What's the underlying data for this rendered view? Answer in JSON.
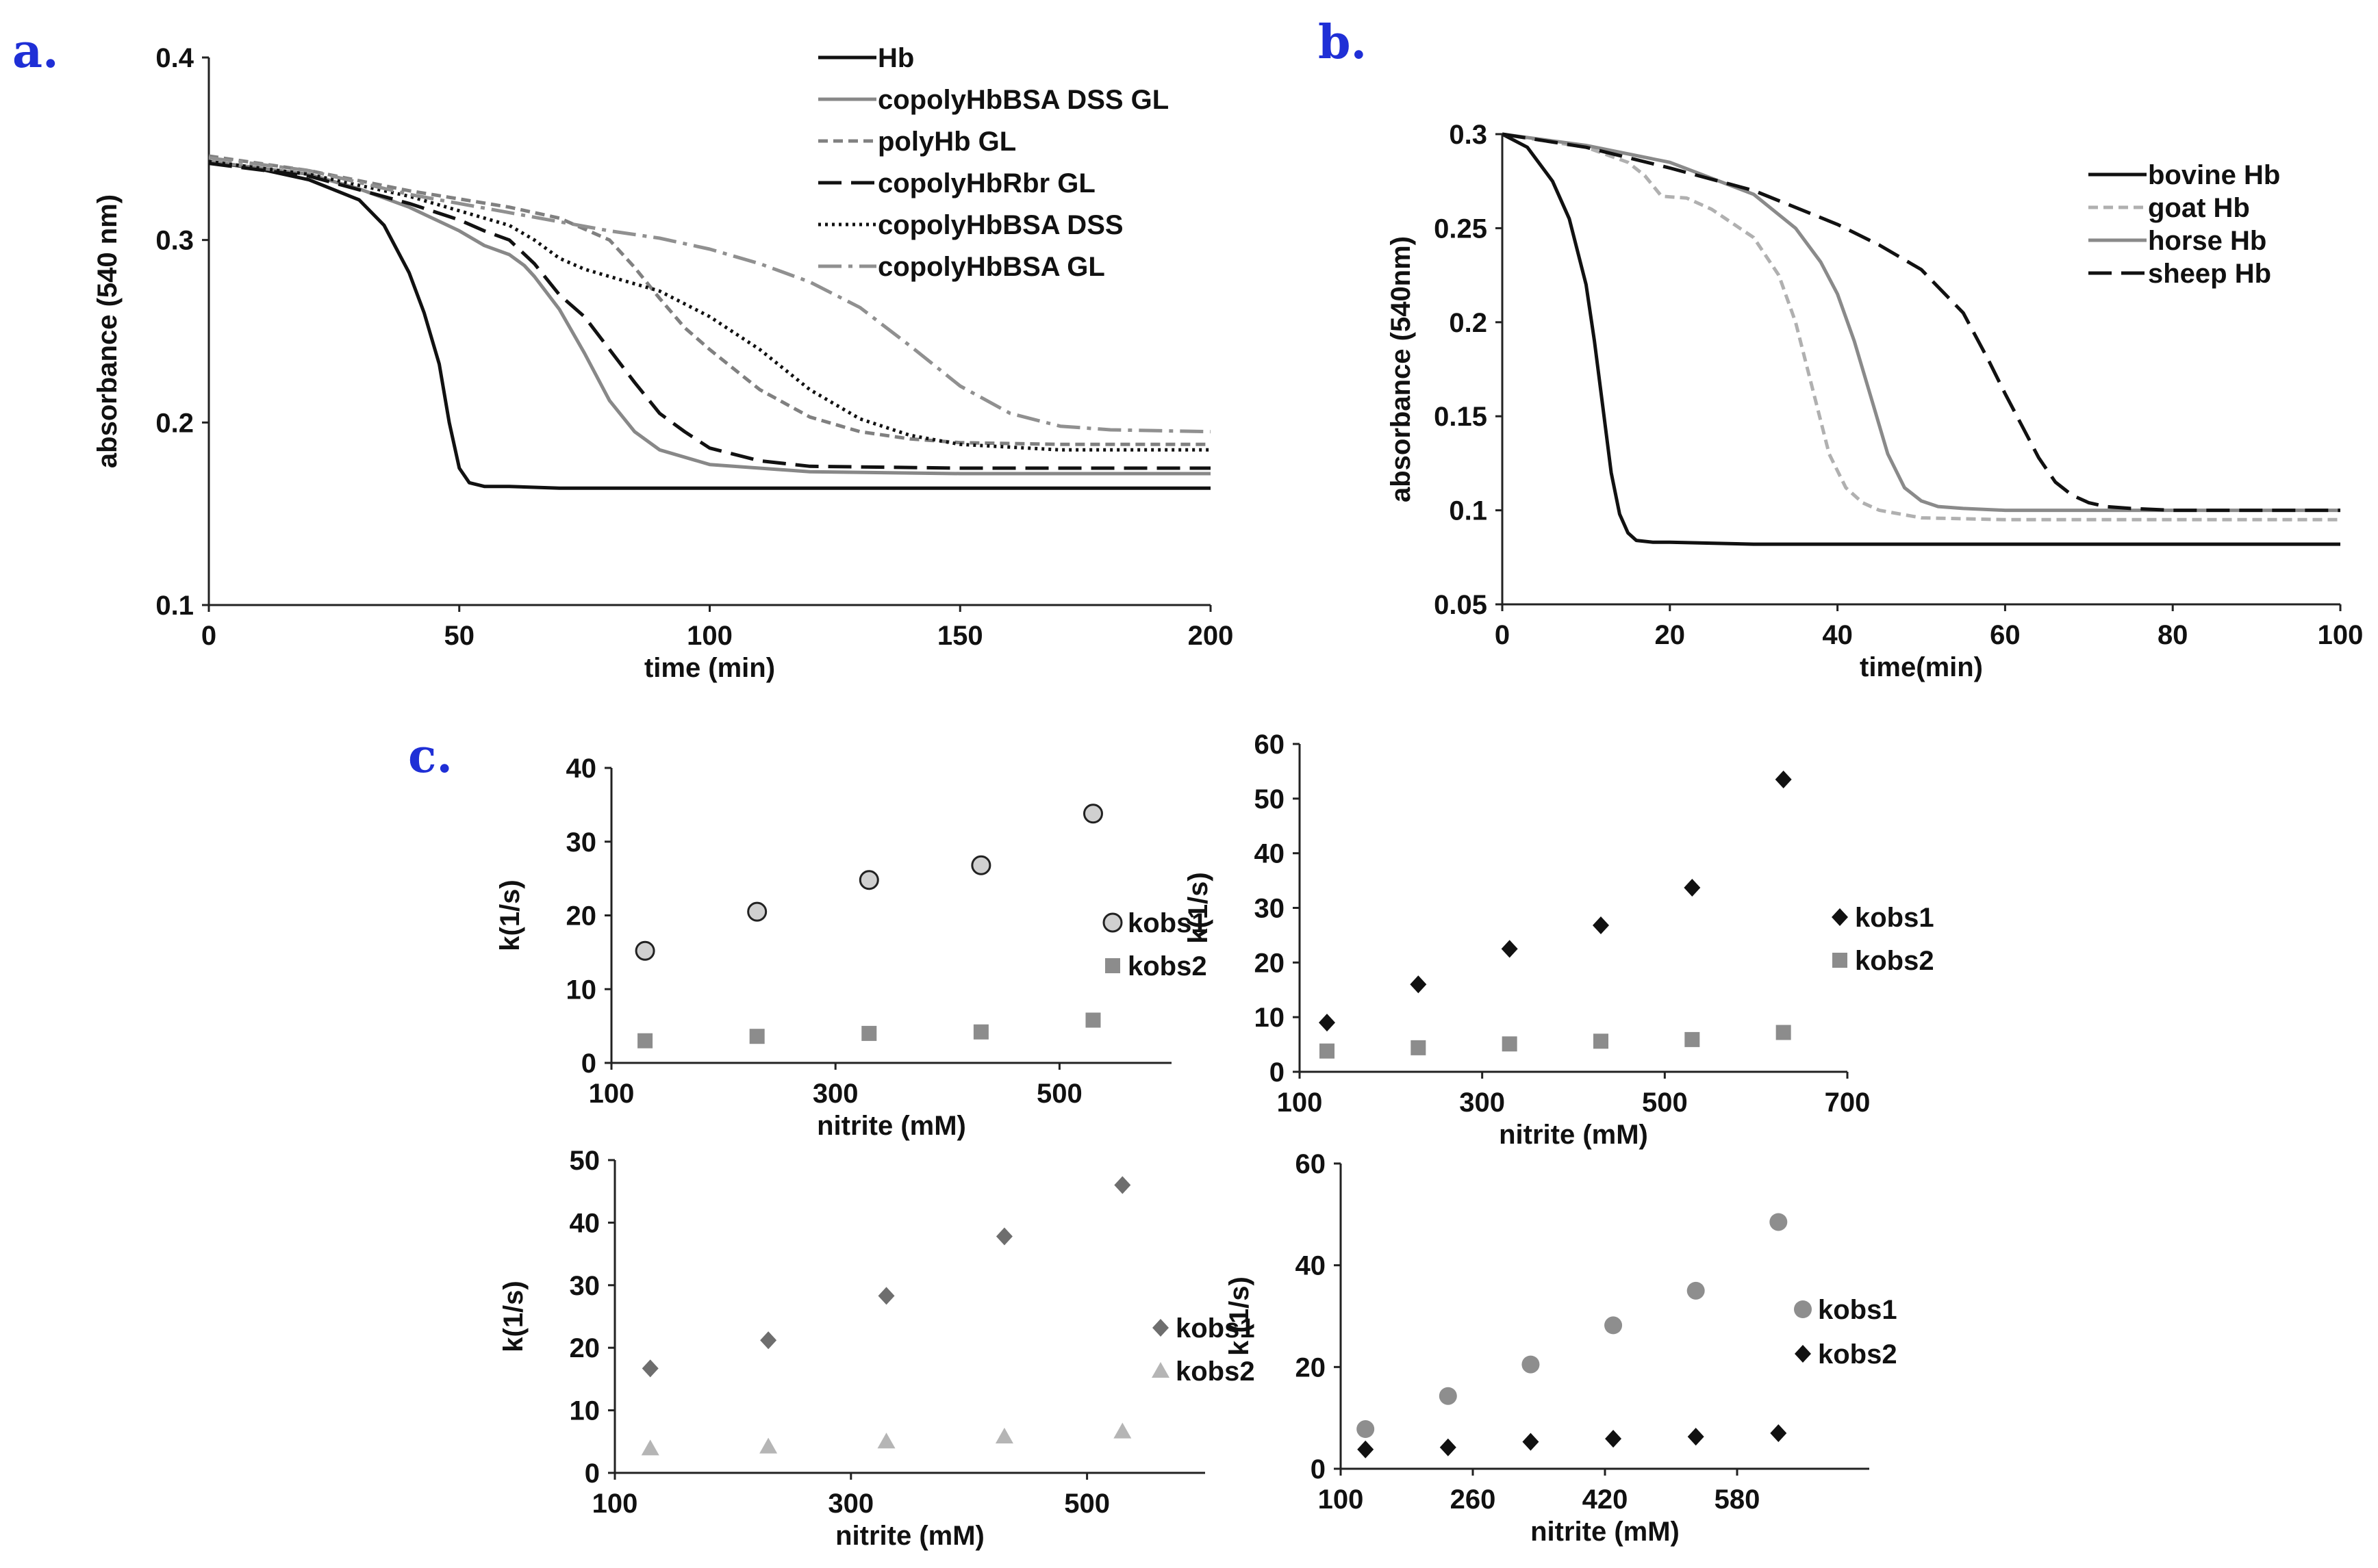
{
  "panel_labels": [
    "a.",
    "b.",
    "c."
  ],
  "chart_data": [
    {
      "id": "a",
      "type": "line",
      "xlabel": "time (min)",
      "ylabel": "absorbance (540 nm)",
      "xlim": [
        0,
        200
      ],
      "ylim": [
        0.1,
        0.4
      ],
      "xticks": [
        0,
        50,
        100,
        150,
        200
      ],
      "yticks": [
        0.1,
        0.2,
        0.3,
        0.4
      ],
      "xtick_labels": [
        "0",
        "50",
        "100",
        "150",
        "200"
      ],
      "ytick_labels": [
        "0.1",
        "0.2",
        "0.3",
        "0.4"
      ],
      "legend_position": "top-right",
      "series": [
        {
          "name": "Hb",
          "color": "#111111",
          "dash": "solid",
          "x": [
            0,
            10,
            20,
            30,
            35,
            40,
            43,
            46,
            48,
            50,
            52,
            55,
            60,
            70,
            100,
            150,
            200
          ],
          "y": [
            0.343,
            0.339,
            0.333,
            0.322,
            0.308,
            0.282,
            0.26,
            0.232,
            0.2,
            0.175,
            0.167,
            0.165,
            0.165,
            0.164,
            0.164,
            0.164,
            0.164
          ]
        },
        {
          "name": "copolyHbBSA DSS GL",
          "color": "#888888",
          "dash": "solid",
          "x": [
            0,
            20,
            30,
            40,
            50,
            55,
            60,
            63,
            65,
            70,
            75,
            80,
            85,
            90,
            100,
            120,
            150,
            200
          ],
          "y": [
            0.343,
            0.336,
            0.328,
            0.318,
            0.305,
            0.297,
            0.292,
            0.286,
            0.28,
            0.262,
            0.238,
            0.212,
            0.195,
            0.185,
            0.177,
            0.173,
            0.172,
            0.172
          ]
        },
        {
          "name": "polyHb GL",
          "color": "#808080",
          "dash": "short",
          "x": [
            0,
            20,
            40,
            60,
            70,
            80,
            85,
            90,
            95,
            100,
            110,
            120,
            130,
            140,
            150,
            170,
            200
          ],
          "y": [
            0.346,
            0.338,
            0.327,
            0.318,
            0.312,
            0.3,
            0.285,
            0.268,
            0.252,
            0.24,
            0.218,
            0.203,
            0.195,
            0.191,
            0.189,
            0.188,
            0.188
          ]
        },
        {
          "name": "copolyHbRbr GL",
          "color": "#111111",
          "dash": "long",
          "x": [
            0,
            20,
            40,
            50,
            55,
            60,
            65,
            70,
            75,
            80,
            85,
            90,
            95,
            100,
            110,
            120,
            150,
            200
          ],
          "y": [
            0.342,
            0.335,
            0.32,
            0.311,
            0.305,
            0.3,
            0.287,
            0.27,
            0.258,
            0.24,
            0.222,
            0.205,
            0.195,
            0.186,
            0.179,
            0.176,
            0.175,
            0.175
          ]
        },
        {
          "name": "copolyHbBSA DSS",
          "color": "#111111",
          "dash": "dotted",
          "x": [
            0,
            20,
            40,
            50,
            60,
            65,
            70,
            75,
            80,
            90,
            100,
            110,
            120,
            130,
            140,
            150,
            170,
            200
          ],
          "y": [
            0.343,
            0.336,
            0.324,
            0.316,
            0.308,
            0.3,
            0.29,
            0.284,
            0.28,
            0.272,
            0.258,
            0.24,
            0.218,
            0.202,
            0.193,
            0.188,
            0.185,
            0.185
          ]
        },
        {
          "name": "copolyHbBSA GL",
          "color": "#909090",
          "dash": "dashdot",
          "x": [
            0,
            20,
            40,
            60,
            70,
            80,
            90,
            100,
            110,
            120,
            130,
            140,
            150,
            160,
            170,
            180,
            200
          ],
          "y": [
            0.345,
            0.338,
            0.325,
            0.315,
            0.31,
            0.305,
            0.301,
            0.295,
            0.287,
            0.277,
            0.263,
            0.242,
            0.22,
            0.205,
            0.198,
            0.196,
            0.195
          ]
        }
      ]
    },
    {
      "id": "b",
      "type": "line",
      "xlabel": "time(min)",
      "ylabel": "absorbance (540nm)",
      "xlim": [
        0,
        100
      ],
      "ylim": [
        0.05,
        0.3
      ],
      "xticks": [
        0,
        20,
        40,
        60,
        80,
        100
      ],
      "yticks": [
        0.05,
        0.1,
        0.15,
        0.2,
        0.25,
        0.3
      ],
      "xtick_labels": [
        "0",
        "20",
        "40",
        "60",
        "80",
        "100"
      ],
      "ytick_labels": [
        "0.05",
        "0.1",
        "0.15",
        "0.2",
        "0.25",
        "0.3"
      ],
      "legend_position": "top-right",
      "series": [
        {
          "name": "bovine Hb",
          "color": "#111111",
          "dash": "solid",
          "x": [
            0,
            3,
            6,
            8,
            10,
            11,
            12,
            13,
            14,
            15,
            16,
            18,
            20,
            30,
            60,
            100
          ],
          "y": [
            0.3,
            0.293,
            0.275,
            0.255,
            0.22,
            0.19,
            0.155,
            0.12,
            0.098,
            0.088,
            0.084,
            0.083,
            0.083,
            0.082,
            0.082,
            0.082
          ]
        },
        {
          "name": "goat Hb",
          "color": "#b0b0b0",
          "dash": "short",
          "x": [
            0,
            10,
            15,
            17,
            19,
            22,
            25,
            30,
            33,
            35,
            37,
            39,
            41,
            43,
            45,
            50,
            60,
            100
          ],
          "y": [
            0.3,
            0.293,
            0.285,
            0.278,
            0.267,
            0.266,
            0.26,
            0.245,
            0.225,
            0.2,
            0.165,
            0.13,
            0.112,
            0.104,
            0.1,
            0.096,
            0.095,
            0.095
          ]
        },
        {
          "name": "horse Hb",
          "color": "#8a8a8a",
          "dash": "solid",
          "x": [
            0,
            10,
            20,
            30,
            35,
            38,
            40,
            42,
            44,
            46,
            48,
            50,
            52,
            55,
            60,
            100
          ],
          "y": [
            0.3,
            0.294,
            0.285,
            0.268,
            0.25,
            0.232,
            0.215,
            0.19,
            0.16,
            0.13,
            0.112,
            0.105,
            0.102,
            0.101,
            0.1,
            0.1
          ]
        },
        {
          "name": "sheep Hb",
          "color": "#111111",
          "dash": "long",
          "x": [
            0,
            10,
            20,
            30,
            40,
            45,
            50,
            55,
            58,
            60,
            62,
            64,
            66,
            68,
            70,
            72,
            75,
            80,
            100
          ],
          "y": [
            0.3,
            0.293,
            0.282,
            0.27,
            0.252,
            0.241,
            0.228,
            0.205,
            0.18,
            0.162,
            0.145,
            0.128,
            0.115,
            0.108,
            0.104,
            0.102,
            0.101,
            0.1,
            0.1
          ]
        }
      ]
    },
    {
      "id": "c1",
      "type": "scatter",
      "xlabel": "nitrite (mM)",
      "ylabel": "k(1/s)",
      "xlim": [
        100,
        600
      ],
      "ylim": [
        0,
        40
      ],
      "xticks": [
        100,
        300,
        500
      ],
      "yticks": [
        0,
        10,
        20,
        30,
        40
      ],
      "xtick_labels": [
        "100",
        "300",
        "500"
      ],
      "ytick_labels": [
        "0",
        "10",
        "20",
        "30",
        "40"
      ],
      "legend_position": "right",
      "series": [
        {
          "name": "kobs1",
          "marker": "circle-open",
          "color": "#d0d0d0",
          "x": [
            130,
            230,
            330,
            430,
            530
          ],
          "y": [
            15.2,
            20.5,
            24.8,
            26.8,
            33.8
          ]
        },
        {
          "name": "kobs2",
          "marker": "square",
          "color": "#8c8c8c",
          "x": [
            130,
            230,
            330,
            430,
            530
          ],
          "y": [
            3.0,
            3.6,
            4.0,
            4.2,
            5.8
          ]
        }
      ]
    },
    {
      "id": "c2",
      "type": "scatter",
      "xlabel": "nitrite (mM)",
      "ylabel": "k(1/s)",
      "xlim": [
        100,
        700
      ],
      "ylim": [
        0,
        60
      ],
      "xticks": [
        100,
        300,
        500,
        700
      ],
      "yticks": [
        0,
        10,
        20,
        30,
        40,
        50,
        60
      ],
      "xtick_labels": [
        "100",
        "300",
        "500",
        "700"
      ],
      "ytick_labels": [
        "0",
        "10",
        "20",
        "30",
        "40",
        "50",
        "60"
      ],
      "legend_position": "right",
      "series": [
        {
          "name": "kobs1",
          "marker": "diamond",
          "color": "#111111",
          "x": [
            130,
            230,
            330,
            430,
            530,
            630
          ],
          "y": [
            9,
            16,
            22.5,
            26.8,
            33.7,
            53.5
          ]
        },
        {
          "name": "kobs2",
          "marker": "square",
          "color": "#8c8c8c",
          "x": [
            130,
            230,
            330,
            430,
            530,
            630
          ],
          "y": [
            3.8,
            4.4,
            5.1,
            5.6,
            5.9,
            7.2
          ]
        }
      ]
    },
    {
      "id": "c3",
      "type": "scatter",
      "xlabel": "nitrite (mM)",
      "ylabel": "k(1/s)",
      "xlim": [
        100,
        600
      ],
      "ylim": [
        0,
        50
      ],
      "xticks": [
        100,
        300,
        500
      ],
      "yticks": [
        0,
        10,
        20,
        30,
        40,
        50
      ],
      "xtick_labels": [
        "100",
        "300",
        "500"
      ],
      "ytick_labels": [
        "0",
        "10",
        "20",
        "30",
        "40",
        "50"
      ],
      "legend_position": "right",
      "series": [
        {
          "name": "kobs1",
          "marker": "diamond",
          "color": "#6e6e6e",
          "x": [
            130,
            230,
            330,
            430,
            530
          ],
          "y": [
            16.7,
            21.2,
            28.3,
            37.8,
            46.0
          ]
        },
        {
          "name": "kobs2",
          "marker": "triangle",
          "color": "#b5b5b5",
          "x": [
            130,
            230,
            330,
            430,
            530
          ],
          "y": [
            3.9,
            4.2,
            5.0,
            5.8,
            6.6
          ]
        }
      ]
    },
    {
      "id": "c4",
      "type": "scatter",
      "xlabel": "nitrite (mM)",
      "ylabel": "k (1/s)",
      "xlim": [
        100,
        740
      ],
      "ylim": [
        0,
        60
      ],
      "xticks": [
        100,
        260,
        420,
        580
      ],
      "yticks": [
        0,
        20,
        40,
        60
      ],
      "xtick_labels": [
        "100",
        "260",
        "420",
        "580"
      ],
      "ytick_labels": [
        "0",
        "20",
        "40",
        "60"
      ],
      "legend_position": "right",
      "series": [
        {
          "name": "kobs1",
          "marker": "circle",
          "color": "#8e8e8e",
          "x": [
            130,
            230,
            330,
            430,
            530,
            630
          ],
          "y": [
            7.8,
            14.3,
            20.5,
            28.2,
            35.0,
            48.5
          ]
        },
        {
          "name": "kobs2",
          "marker": "diamond",
          "color": "#111111",
          "x": [
            130,
            230,
            330,
            430,
            530,
            630
          ],
          "y": [
            3.8,
            4.2,
            5.3,
            5.9,
            6.3,
            7.0
          ]
        }
      ]
    }
  ]
}
